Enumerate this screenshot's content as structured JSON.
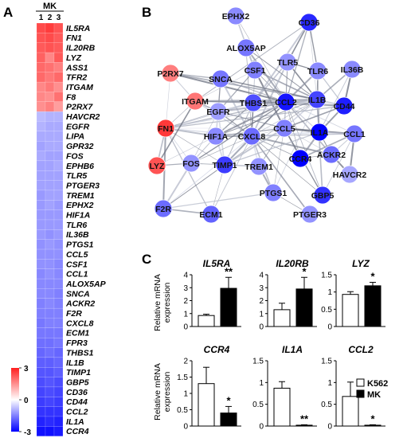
{
  "panels": {
    "a": "A",
    "b": "B",
    "c": "C"
  },
  "heatmap": {
    "group_label": "MK",
    "columns": [
      "1",
      "2",
      "3"
    ],
    "colorbar_ticks": [
      "3",
      "0",
      "-3"
    ],
    "genes": [
      {
        "name": "IL5RA",
        "v": [
          2.4,
          2.6,
          2.3
        ]
      },
      {
        "name": "FN1",
        "v": [
          2.3,
          2.4,
          2.2
        ]
      },
      {
        "name": "IL20RB",
        "v": [
          2.2,
          2.3,
          2.2
        ]
      },
      {
        "name": "LYZ",
        "v": [
          2.1,
          1.6,
          2.2
        ]
      },
      {
        "name": "ASS1",
        "v": [
          2.0,
          1.9,
          1.7
        ]
      },
      {
        "name": "TFR2",
        "v": [
          2.0,
          1.8,
          2.0
        ]
      },
      {
        "name": "ITGAM",
        "v": [
          1.6,
          1.8,
          1.5
        ]
      },
      {
        "name": "F8",
        "v": [
          1.6,
          1.5,
          1.9
        ]
      },
      {
        "name": "P2RX7",
        "v": [
          1.5,
          1.7,
          1.3
        ]
      },
      {
        "name": "HAVCR2",
        "v": [
          -0.8,
          -0.9,
          -0.9
        ]
      },
      {
        "name": "EGFR",
        "v": [
          -0.9,
          -1.0,
          -1.0
        ]
      },
      {
        "name": "LIPA",
        "v": [
          -1.0,
          -1.0,
          -1.0
        ]
      },
      {
        "name": "GPR32",
        "v": [
          -1.1,
          -1.0,
          -1.0
        ]
      },
      {
        "name": "FOS",
        "v": [
          -1.0,
          -1.1,
          -1.1
        ]
      },
      {
        "name": "EPHB6",
        "v": [
          -1.1,
          -1.1,
          -1.0
        ]
      },
      {
        "name": "TLR5",
        "v": [
          -1.1,
          -1.1,
          -1.1
        ]
      },
      {
        "name": "PTGER3",
        "v": [
          -1.1,
          -1.1,
          -1.1
        ]
      },
      {
        "name": "TREM1",
        "v": [
          -1.2,
          -1.1,
          -1.1
        ]
      },
      {
        "name": "EPHX2",
        "v": [
          -1.2,
          -1.1,
          -1.2
        ]
      },
      {
        "name": "HIF1A",
        "v": [
          -1.2,
          -1.2,
          -1.2
        ]
      },
      {
        "name": "TLR6",
        "v": [
          -1.2,
          -1.2,
          -1.2
        ]
      },
      {
        "name": "IL36B",
        "v": [
          -1.2,
          -1.3,
          -1.2
        ]
      },
      {
        "name": "PTGS1",
        "v": [
          -1.3,
          -1.2,
          -1.3
        ]
      },
      {
        "name": "CCL5",
        "v": [
          -1.3,
          -1.3,
          -1.3
        ]
      },
      {
        "name": "CSF1",
        "v": [
          -1.3,
          -1.3,
          -1.4
        ]
      },
      {
        "name": "CCL1",
        "v": [
          -1.4,
          -1.3,
          -1.4
        ]
      },
      {
        "name": "ALOX5AP",
        "v": [
          -1.4,
          -1.4,
          -1.4
        ]
      },
      {
        "name": "SNCA",
        "v": [
          -1.4,
          -1.4,
          -1.5
        ]
      },
      {
        "name": "ACKR2",
        "v": [
          -1.5,
          -1.4,
          -1.5
        ]
      },
      {
        "name": "F2R",
        "v": [
          -1.5,
          -1.5,
          -1.5
        ]
      },
      {
        "name": "CXCL8",
        "v": [
          -1.6,
          -1.5,
          -1.5
        ]
      },
      {
        "name": "ECM1",
        "v": [
          -1.6,
          -1.6,
          -1.6
        ]
      },
      {
        "name": "FPR3",
        "v": [
          -1.7,
          -1.7,
          -1.6
        ]
      },
      {
        "name": "THBS1",
        "v": [
          -1.8,
          -1.7,
          -1.8
        ]
      },
      {
        "name": "IL1B",
        "v": [
          -1.9,
          -1.9,
          -1.8
        ]
      },
      {
        "name": "TIMP1",
        "v": [
          -2.0,
          -2.0,
          -1.9
        ]
      },
      {
        "name": "GBP5",
        "v": [
          -2.1,
          -2.0,
          -2.1
        ]
      },
      {
        "name": "CD36",
        "v": [
          -2.2,
          -2.1,
          -2.2
        ]
      },
      {
        "name": "CD44",
        "v": [
          -2.3,
          -2.2,
          -2.3
        ]
      },
      {
        "name": "CCL2",
        "v": [
          -2.4,
          -2.4,
          -2.4
        ]
      },
      {
        "name": "IL1A",
        "v": [
          -2.6,
          -2.5,
          -2.6
        ]
      },
      {
        "name": "CCR4",
        "v": [
          -2.8,
          -2.8,
          -2.7
        ]
      }
    ]
  },
  "network": {
    "nodes": [
      {
        "id": "EPHX2",
        "v": -1.2
      },
      {
        "id": "CD36",
        "v": -2.2
      },
      {
        "id": "ALOX5AP",
        "v": -1.4
      },
      {
        "id": "P2RX7",
        "v": 1.5
      },
      {
        "id": "CSF1",
        "v": -1.3
      },
      {
        "id": "TLR5",
        "v": -1.1
      },
      {
        "id": "TLR6",
        "v": -1.2
      },
      {
        "id": "IL36B",
        "v": -1.2
      },
      {
        "id": "SNCA",
        "v": -1.4
      },
      {
        "id": "IL1B",
        "v": -1.9
      },
      {
        "id": "ITGAM",
        "v": 1.6
      },
      {
        "id": "THBS1",
        "v": -1.8
      },
      {
        "id": "CCL2",
        "v": -2.4
      },
      {
        "id": "CD44",
        "v": -2.3
      },
      {
        "id": "EGFR",
        "v": -1.0
      },
      {
        "id": "FN1",
        "v": 2.3
      },
      {
        "id": "HIF1A",
        "v": -1.2
      },
      {
        "id": "CXCL8",
        "v": -1.5
      },
      {
        "id": "CCL5",
        "v": -1.3
      },
      {
        "id": "IL1A",
        "v": -2.6
      },
      {
        "id": "CCL1",
        "v": -1.4
      },
      {
        "id": "LYZ",
        "v": 2.0
      },
      {
        "id": "FOS",
        "v": -1.1
      },
      {
        "id": "TIMP1",
        "v": -2.0
      },
      {
        "id": "TREM1",
        "v": -1.1
      },
      {
        "id": "CCR4",
        "v": -2.8
      },
      {
        "id": "ACKR2",
        "v": -1.5
      },
      {
        "id": "HAVCR2",
        "v": -0.9
      },
      {
        "id": "PTGS1",
        "v": -1.3
      },
      {
        "id": "GBP5",
        "v": -2.1
      },
      {
        "id": "F2R",
        "v": -1.5
      },
      {
        "id": "ECM1",
        "v": -1.6
      },
      {
        "id": "PTGER3",
        "v": -1.1
      }
    ],
    "edges": [
      [
        "CSF1",
        "CCL2"
      ],
      [
        "CSF1",
        "IL1B"
      ],
      [
        "CSF1",
        "CXCL8"
      ],
      [
        "CSF1",
        "CCL5"
      ],
      [
        "CSF1",
        "EGFR"
      ],
      [
        "CSF1",
        "ITGAM"
      ],
      [
        "TLR5",
        "IL1B"
      ],
      [
        "TLR5",
        "CCL2"
      ],
      [
        "TLR5",
        "CXCL8"
      ],
      [
        "TLR5",
        "TLR6"
      ],
      [
        "TLR5",
        "CCL5"
      ],
      [
        "TLR5",
        "THBS1"
      ],
      [
        "TLR6",
        "IL1B"
      ],
      [
        "TLR6",
        "CCL2"
      ],
      [
        "TLR6",
        "CD44"
      ],
      [
        "TLR6",
        "IL1A"
      ],
      [
        "IL36B",
        "IL1B"
      ],
      [
        "IL36B",
        "IL1A"
      ],
      [
        "IL36B",
        "CD44"
      ],
      [
        "CD36",
        "CCL2"
      ],
      [
        "CD36",
        "IL1B"
      ],
      [
        "CD36",
        "TLR5"
      ],
      [
        "CD36",
        "ITGAM"
      ],
      [
        "CD36",
        "THBS1"
      ],
      [
        "CD36",
        "TLR6"
      ],
      [
        "EPHX2",
        "CCL2"
      ],
      [
        "EPHX2",
        "CSF1"
      ],
      [
        "ALOX5AP",
        "IL1B"
      ],
      [
        "ALOX5AP",
        "CCL2"
      ],
      [
        "ALOX5AP",
        "CSF1"
      ],
      [
        "ALOX5AP",
        "CXCL8"
      ],
      [
        "P2RX7",
        "IL1B"
      ],
      [
        "P2RX7",
        "ITGAM"
      ],
      [
        "P2RX7",
        "CCL2"
      ],
      [
        "P2RX7",
        "SNCA"
      ],
      [
        "P2RX7",
        "FN1"
      ],
      [
        "SNCA",
        "IL1B"
      ],
      [
        "SNCA",
        "CCL2"
      ],
      [
        "SNCA",
        "CXCL8"
      ],
      [
        "SNCA",
        "EGFR"
      ],
      [
        "ITGAM",
        "FN1"
      ],
      [
        "ITGAM",
        "THBS1"
      ],
      [
        "ITGAM",
        "CCL2"
      ],
      [
        "ITGAM",
        "IL1B"
      ],
      [
        "ITGAM",
        "CXCL8"
      ],
      [
        "ITGAM",
        "CD44"
      ],
      [
        "ITGAM",
        "EGFR"
      ],
      [
        "THBS1",
        "FN1"
      ],
      [
        "THBS1",
        "CCL2"
      ],
      [
        "THBS1",
        "CD44"
      ],
      [
        "THBS1",
        "IL1B"
      ],
      [
        "THBS1",
        "CXCL8"
      ],
      [
        "THBS1",
        "TIMP1"
      ],
      [
        "THBS1",
        "EGFR"
      ],
      [
        "THBS1",
        "HIF1A"
      ],
      [
        "CCL2",
        "IL1B"
      ],
      [
        "CCL2",
        "CCL5"
      ],
      [
        "CCL2",
        "CXCL8"
      ],
      [
        "CCL2",
        "CD44"
      ],
      [
        "CCL2",
        "IL1A"
      ],
      [
        "CCL2",
        "CCR4"
      ],
      [
        "CCL2",
        "ACKR2"
      ],
      [
        "CCL2",
        "CCL1"
      ],
      [
        "CCL2",
        "HIF1A"
      ],
      [
        "CCL2",
        "FN1"
      ],
      [
        "CCL2",
        "EGFR"
      ],
      [
        "CCL2",
        "TIMP1"
      ],
      [
        "CCL2",
        "GBP5"
      ],
      [
        "IL1B",
        "CD44"
      ],
      [
        "IL1B",
        "IL1A"
      ],
      [
        "IL1B",
        "CXCL8"
      ],
      [
        "IL1B",
        "CCL5"
      ],
      [
        "IL1B",
        "HIF1A"
      ],
      [
        "IL1B",
        "EGFR"
      ],
      [
        "IL1B",
        "FN1"
      ],
      [
        "IL1B",
        "TIMP1"
      ],
      [
        "IL1B",
        "GBP5"
      ],
      [
        "IL1B",
        "PTGS1"
      ],
      [
        "CD44",
        "IL1A"
      ],
      [
        "CD44",
        "FN1"
      ],
      [
        "CD44",
        "EGFR"
      ],
      [
        "CD44",
        "CCL5"
      ],
      [
        "EGFR",
        "FN1"
      ],
      [
        "EGFR",
        "HIF1A"
      ],
      [
        "EGFR",
        "CXCL8"
      ],
      [
        "EGFR",
        "FOS"
      ],
      [
        "EGFR",
        "TIMP1"
      ],
      [
        "EGFR",
        "CCL5"
      ],
      [
        "FN1",
        "HIF1A"
      ],
      [
        "FN1",
        "CXCL8"
      ],
      [
        "FN1",
        "TIMP1"
      ],
      [
        "FN1",
        "LYZ"
      ],
      [
        "FN1",
        "FOS"
      ],
      [
        "FN1",
        "F2R"
      ],
      [
        "FN1",
        "ECM1"
      ],
      [
        "FN1",
        "CCL5"
      ],
      [
        "HIF1A",
        "CXCL8"
      ],
      [
        "HIF1A",
        "FOS"
      ],
      [
        "HIF1A",
        "TIMP1"
      ],
      [
        "HIF1A",
        "CCL5"
      ],
      [
        "CXCL8",
        "CCL5"
      ],
      [
        "CXCL8",
        "IL1A"
      ],
      [
        "CXCL8",
        "CCR4"
      ],
      [
        "CXCL8",
        "TIMP1"
      ],
      [
        "CXCL8",
        "TREM1"
      ],
      [
        "CXCL8",
        "FOS"
      ],
      [
        "CXCL8",
        "PTGS1"
      ],
      [
        "CXCL8",
        "F2R"
      ],
      [
        "CXCL8",
        "ACKR2"
      ],
      [
        "CXCL8",
        "CCL1"
      ],
      [
        "CXCL8",
        "GBP5"
      ],
      [
        "CXCL8",
        "PTGER3"
      ],
      [
        "CXCL8",
        "ECM1"
      ],
      [
        "CCL5",
        "IL1A"
      ],
      [
        "CCL5",
        "CCR4"
      ],
      [
        "CCL5",
        "ACKR2"
      ],
      [
        "CCL5",
        "CCL1"
      ],
      [
        "CCL5",
        "TREM1"
      ],
      [
        "CCL5",
        "TIMP1"
      ],
      [
        "CCL5",
        "GBP5"
      ],
      [
        "CCL5",
        "PTGS1"
      ],
      [
        "IL1A",
        "CCL1"
      ],
      [
        "IL1A",
        "ACKR2"
      ],
      [
        "IL1A",
        "CCR4"
      ],
      [
        "IL1A",
        "TIMP1"
      ],
      [
        "CCR4",
        "ACKR2"
      ],
      [
        "CCR4",
        "CCL1"
      ],
      [
        "ACKR2",
        "CCL1"
      ],
      [
        "ACKR2",
        "HAVCR2"
      ],
      [
        "LYZ",
        "FOS"
      ],
      [
        "LYZ",
        "HIF1A"
      ],
      [
        "LYZ",
        "ITGAM"
      ],
      [
        "FOS",
        "TIMP1"
      ],
      [
        "FOS",
        "F2R"
      ],
      [
        "FOS",
        "CCL2"
      ],
      [
        "TIMP1",
        "ECM1"
      ],
      [
        "TIMP1",
        "TREM1"
      ],
      [
        "TIMP1",
        "F2R"
      ],
      [
        "TREM1",
        "PTGS1"
      ],
      [
        "PTGS1",
        "F2R"
      ],
      [
        "PTGS1",
        "PTGER3"
      ],
      [
        "F2R",
        "ECM1"
      ],
      [
        "GBP5",
        "CCL1"
      ],
      [
        "HAVCR2",
        "CCL1"
      ]
    ]
  },
  "bar_charts": {
    "ylabel": "Relative mRNA expression",
    "legend": {
      "k562": "K562",
      "mk": "MK"
    },
    "colors": {
      "k562": "#ffffff",
      "mk": "#000000"
    },
    "ticks_row1": [
      "0",
      "0.5",
      "1",
      "1.5"
    ],
    "ticks_row2": [
      "0",
      "0.5",
      "1",
      "1.5"
    ]
  },
  "chart_data": [
    {
      "type": "bar",
      "title": "IL5RA",
      "categories": [
        "K562",
        "MK"
      ],
      "values": [
        0.85,
        2.95
      ],
      "errors": [
        0.1,
        0.85
      ],
      "ylim": [
        0,
        4
      ],
      "yticks": [
        0,
        1,
        2,
        3,
        4
      ],
      "significance": "**"
    },
    {
      "type": "bar",
      "title": "IL20RB",
      "categories": [
        "K562",
        "MK"
      ],
      "values": [
        1.3,
        2.9
      ],
      "errors": [
        0.5,
        0.9
      ],
      "ylim": [
        0,
        4
      ],
      "yticks": [
        0,
        1,
        2,
        3,
        4
      ],
      "significance": "*"
    },
    {
      "type": "bar",
      "title": "LYZ",
      "categories": [
        "K562",
        "MK"
      ],
      "values": [
        0.93,
        1.18
      ],
      "errors": [
        0.08,
        0.1
      ],
      "ylim": [
        0,
        1.5
      ],
      "yticks": [
        0,
        0.5,
        1,
        1.5
      ],
      "significance": "*"
    },
    {
      "type": "bar",
      "title": "CCR4",
      "categories": [
        "K562",
        "MK"
      ],
      "values": [
        1.3,
        0.4
      ],
      "errors": [
        0.5,
        0.2
      ],
      "ylim": [
        0,
        2
      ],
      "yticks": [
        0,
        0.5,
        1,
        1.5,
        2
      ],
      "significance": "*"
    },
    {
      "type": "bar",
      "title": "IL1A",
      "categories": [
        "K562",
        "MK"
      ],
      "values": [
        0.87,
        0.02
      ],
      "errors": [
        0.15,
        0.01
      ],
      "ylim": [
        0,
        1.5
      ],
      "yticks": [
        0,
        0.5,
        1,
        1.5
      ],
      "significance": "**"
    },
    {
      "type": "bar",
      "title": "CCL2",
      "categories": [
        "K562",
        "MK"
      ],
      "values": [
        0.68,
        0.02
      ],
      "errors": [
        0.33,
        0.01
      ],
      "ylim": [
        0,
        1.5
      ],
      "yticks": [
        0,
        0.5,
        1,
        1.5
      ],
      "significance": "*"
    }
  ]
}
